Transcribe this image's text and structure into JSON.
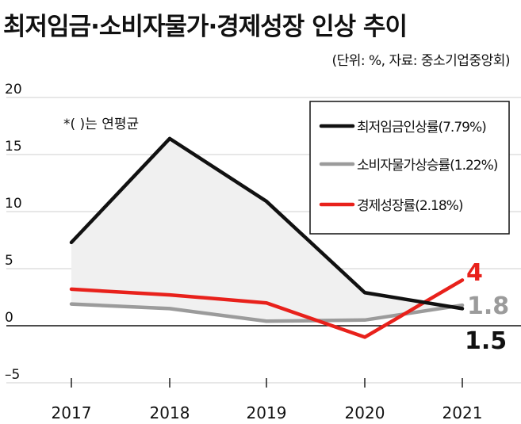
{
  "title": "최저임금·소비자물가·경제성장 인상 추이",
  "subtitle": "(단위: %, 자료: 중소기업중앙회)",
  "note": "*(  )는 연평균",
  "chart_data": {
    "type": "line",
    "x": [
      "2017",
      "2018",
      "2019",
      "2020",
      "2021"
    ],
    "ylim": [
      -5,
      20
    ],
    "yticks": [
      "20",
      "15",
      "10",
      "5",
      "0",
      "–5"
    ],
    "ytick_values": [
      20,
      15,
      10,
      5,
      0,
      -5
    ],
    "grid": true,
    "legend_position": "top-right",
    "series": [
      {
        "name": "최저임금인상률(7.79%)",
        "values": [
          7.3,
          16.4,
          10.9,
          2.9,
          1.5
        ],
        "color": "#111111",
        "end_label": "1.5",
        "end_label_color": "#111111"
      },
      {
        "name": "소비자물가상승률(1.22%)",
        "values": [
          1.9,
          1.5,
          0.4,
          0.5,
          1.8
        ],
        "color": "#9b9b9b",
        "end_label": "1.8",
        "end_label_color": "#9b9b9b"
      },
      {
        "name": "경제성장률(2.18%)",
        "values": [
          3.2,
          2.7,
          2.0,
          -1.0,
          4.0
        ],
        "color": "#e8211b",
        "end_label": "4",
        "end_label_color": "#e8211b"
      }
    ]
  }
}
